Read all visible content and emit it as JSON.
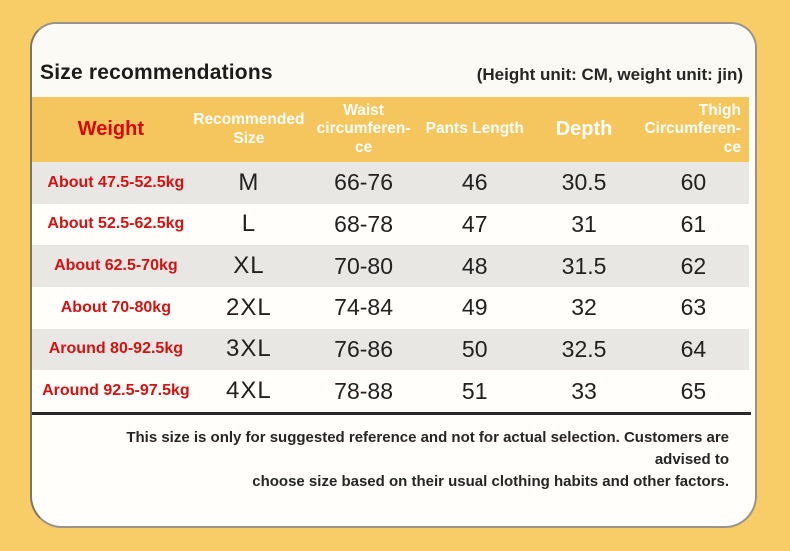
{
  "header": {
    "title": "Size recommendations",
    "unit_note": "(Height unit: CM, weight unit: jin)"
  },
  "table": {
    "columns": [
      {
        "key": "weight",
        "label": "Weight"
      },
      {
        "key": "size",
        "label": "Recommended Size"
      },
      {
        "key": "waist",
        "label": "Waist\ncircumferen-\nce"
      },
      {
        "key": "pants",
        "label": "Pants Length"
      },
      {
        "key": "depth",
        "label": "Depth"
      },
      {
        "key": "thigh",
        "label": "Thigh\nCircumferen-\nce"
      }
    ],
    "rows": [
      {
        "weight": "About 47.5-52.5kg",
        "size": "M",
        "waist": "66-76",
        "pants": "46",
        "depth": "30.5",
        "thigh": "60"
      },
      {
        "weight": "About 52.5-62.5kg",
        "size": "L",
        "waist": "68-78",
        "pants": "47",
        "depth": "31",
        "thigh": "61"
      },
      {
        "weight": "About 62.5-70kg",
        "size": "XL",
        "waist": "70-80",
        "pants": "48",
        "depth": "31.5",
        "thigh": "62"
      },
      {
        "weight": "About 70-80kg",
        "size": "2XL",
        "waist": "74-84",
        "pants": "49",
        "depth": "32",
        "thigh": "63"
      },
      {
        "weight": "Around 80-92.5kg",
        "size": "3XL",
        "waist": "76-86",
        "pants": "50",
        "depth": "32.5",
        "thigh": "64"
      },
      {
        "weight": "Around 92.5-97.5kg",
        "size": "4XL",
        "waist": "78-88",
        "pants": "51",
        "depth": "33",
        "thigh": "65"
      }
    ]
  },
  "footer": {
    "line1": "This size is only for suggested reference and not for actual selection. Customers are advised to",
    "line2": "choose size based on their usual clothing habits and other factors."
  },
  "colors": {
    "page_background": "#f8cd68",
    "header_band": "#f6c65e",
    "accent_red": "#d90707",
    "stripe_gray": "#e8e7e4",
    "card_white": "#fffefb"
  }
}
